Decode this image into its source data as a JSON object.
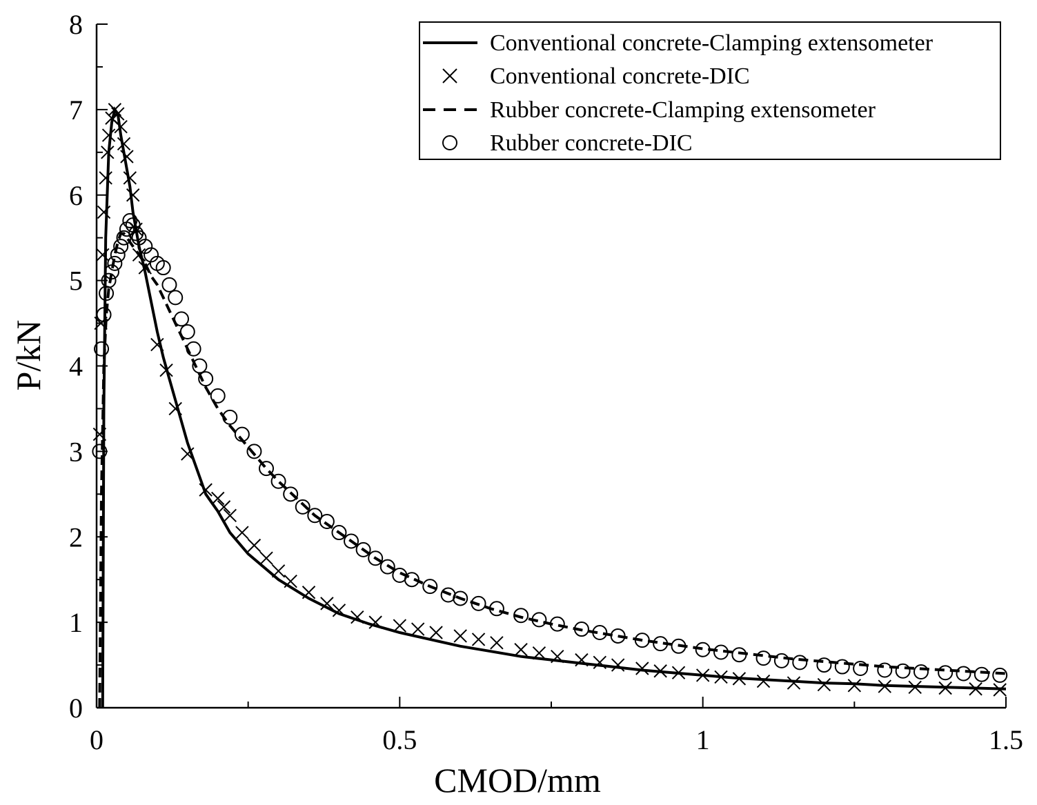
{
  "chart_data": {
    "type": "scatter",
    "title": "",
    "xlabel": "CMOD/mm",
    "ylabel": "P/kN",
    "xlim": [
      0,
      1.5
    ],
    "ylim": [
      0,
      8
    ],
    "x_ticks": [
      "0",
      "0.5",
      "1",
      "1.5"
    ],
    "y_ticks": [
      "0",
      "1",
      "2",
      "3",
      "4",
      "5",
      "6",
      "7",
      "8"
    ],
    "grid": false,
    "legend_position": "top-right",
    "series": [
      {
        "name": "Conventional concrete-Clamping extensometer",
        "style": "solid-line",
        "x": [
          0.01,
          0.012,
          0.015,
          0.02,
          0.025,
          0.03,
          0.035,
          0.04,
          0.045,
          0.05,
          0.055,
          0.06,
          0.07,
          0.08,
          0.09,
          0.1,
          0.11,
          0.12,
          0.13,
          0.14,
          0.15,
          0.16,
          0.17,
          0.18,
          0.19,
          0.2,
          0.22,
          0.25,
          0.3,
          0.35,
          0.4,
          0.45,
          0.5,
          0.55,
          0.6,
          0.65,
          0.7,
          0.75,
          0.8,
          0.85,
          0.9,
          0.95,
          1.0,
          1.05,
          1.1,
          1.15,
          1.2,
          1.25,
          1.3,
          1.35,
          1.4,
          1.45,
          1.5
        ],
        "y": [
          0.0,
          3.5,
          5.5,
          6.5,
          6.85,
          7.0,
          6.95,
          6.7,
          6.5,
          6.3,
          6.1,
          5.8,
          5.4,
          5.1,
          4.75,
          4.4,
          4.1,
          3.85,
          3.6,
          3.35,
          3.1,
          2.9,
          2.7,
          2.5,
          2.4,
          2.3,
          2.05,
          1.8,
          1.5,
          1.28,
          1.1,
          0.98,
          0.88,
          0.8,
          0.72,
          0.66,
          0.6,
          0.56,
          0.52,
          0.48,
          0.44,
          0.41,
          0.38,
          0.35,
          0.33,
          0.31,
          0.29,
          0.28,
          0.26,
          0.25,
          0.24,
          0.23,
          0.22
        ]
      },
      {
        "name": "Conventional concrete-DIC",
        "style": "x-marker",
        "x": [
          0.005,
          0.007,
          0.01,
          0.012,
          0.015,
          0.018,
          0.02,
          0.025,
          0.03,
          0.035,
          0.04,
          0.045,
          0.05,
          0.055,
          0.06,
          0.065,
          0.07,
          0.08,
          0.1,
          0.115,
          0.13,
          0.15,
          0.18,
          0.2,
          0.21,
          0.22,
          0.24,
          0.26,
          0.28,
          0.3,
          0.32,
          0.35,
          0.38,
          0.4,
          0.43,
          0.46,
          0.5,
          0.53,
          0.56,
          0.6,
          0.63,
          0.66,
          0.7,
          0.73,
          0.76,
          0.8,
          0.83,
          0.86,
          0.9,
          0.93,
          0.96,
          1.0,
          1.03,
          1.06,
          1.1,
          1.15,
          1.2,
          1.25,
          1.3,
          1.35,
          1.4,
          1.45,
          1.49
        ],
        "y": [
          3.2,
          4.5,
          5.3,
          5.8,
          6.2,
          6.5,
          6.7,
          6.9,
          7.0,
          6.95,
          6.8,
          6.6,
          6.45,
          6.2,
          6.0,
          5.6,
          5.3,
          5.15,
          4.25,
          3.95,
          3.5,
          2.97,
          2.55,
          2.45,
          2.35,
          2.25,
          2.05,
          1.9,
          1.75,
          1.6,
          1.48,
          1.35,
          1.22,
          1.14,
          1.06,
          1.0,
          0.96,
          0.92,
          0.88,
          0.84,
          0.8,
          0.76,
          0.68,
          0.64,
          0.6,
          0.56,
          0.53,
          0.5,
          0.46,
          0.43,
          0.41,
          0.38,
          0.36,
          0.34,
          0.31,
          0.29,
          0.27,
          0.26,
          0.25,
          0.24,
          0.23,
          0.22,
          0.21
        ]
      },
      {
        "name": "Rubber concrete-Clamping extensometer",
        "style": "dashed-line",
        "x": [
          0.005,
          0.008,
          0.012,
          0.016,
          0.02,
          0.025,
          0.03,
          0.035,
          0.04,
          0.045,
          0.05,
          0.055,
          0.06,
          0.07,
          0.08,
          0.09,
          0.1,
          0.11,
          0.12,
          0.13,
          0.14,
          0.15,
          0.16,
          0.17,
          0.18,
          0.2,
          0.22,
          0.25,
          0.28,
          0.3,
          0.33,
          0.36,
          0.4,
          0.43,
          0.46,
          0.5,
          0.55,
          0.6,
          0.65,
          0.7,
          0.75,
          0.8,
          0.85,
          0.9,
          0.95,
          1.0,
          1.05,
          1.1,
          1.15,
          1.2,
          1.25,
          1.3,
          1.35,
          1.4,
          1.45,
          1.5
        ],
        "y": [
          0.0,
          2.5,
          4.0,
          4.6,
          4.9,
          5.1,
          5.3,
          5.45,
          5.55,
          5.55,
          5.5,
          5.45,
          5.4,
          5.3,
          5.2,
          5.05,
          4.95,
          4.8,
          4.65,
          4.5,
          4.35,
          4.2,
          4.05,
          3.9,
          3.75,
          3.5,
          3.3,
          3.05,
          2.8,
          2.65,
          2.45,
          2.25,
          2.05,
          1.9,
          1.75,
          1.58,
          1.42,
          1.28,
          1.16,
          1.06,
          0.98,
          0.91,
          0.85,
          0.79,
          0.74,
          0.69,
          0.65,
          0.61,
          0.57,
          0.54,
          0.51,
          0.48,
          0.46,
          0.44,
          0.42,
          0.4
        ]
      },
      {
        "name": "Rubber concrete-DIC",
        "style": "o-marker",
        "x": [
          0.005,
          0.008,
          0.012,
          0.016,
          0.02,
          0.025,
          0.03,
          0.035,
          0.04,
          0.045,
          0.05,
          0.055,
          0.06,
          0.065,
          0.07,
          0.08,
          0.09,
          0.1,
          0.11,
          0.12,
          0.13,
          0.14,
          0.15,
          0.16,
          0.17,
          0.18,
          0.2,
          0.22,
          0.24,
          0.26,
          0.28,
          0.3,
          0.32,
          0.34,
          0.36,
          0.38,
          0.4,
          0.42,
          0.44,
          0.46,
          0.48,
          0.5,
          0.52,
          0.55,
          0.58,
          0.6,
          0.63,
          0.66,
          0.7,
          0.73,
          0.76,
          0.8,
          0.83,
          0.86,
          0.9,
          0.93,
          0.96,
          1.0,
          1.03,
          1.06,
          1.1,
          1.13,
          1.16,
          1.2,
          1.23,
          1.26,
          1.3,
          1.33,
          1.36,
          1.4,
          1.43,
          1.46,
          1.49
        ],
        "y": [
          3.0,
          4.2,
          4.6,
          4.85,
          5.0,
          5.1,
          5.2,
          5.3,
          5.4,
          5.5,
          5.6,
          5.7,
          5.65,
          5.55,
          5.5,
          5.4,
          5.3,
          5.2,
          5.15,
          4.95,
          4.8,
          4.55,
          4.4,
          4.2,
          4.0,
          3.85,
          3.65,
          3.4,
          3.2,
          3.0,
          2.8,
          2.65,
          2.5,
          2.35,
          2.25,
          2.18,
          2.05,
          1.95,
          1.85,
          1.75,
          1.65,
          1.55,
          1.5,
          1.42,
          1.32,
          1.28,
          1.22,
          1.16,
          1.08,
          1.03,
          0.98,
          0.92,
          0.88,
          0.84,
          0.79,
          0.75,
          0.72,
          0.68,
          0.65,
          0.62,
          0.58,
          0.55,
          0.53,
          0.5,
          0.48,
          0.46,
          0.44,
          0.43,
          0.42,
          0.41,
          0.4,
          0.39,
          0.38
        ]
      }
    ]
  }
}
